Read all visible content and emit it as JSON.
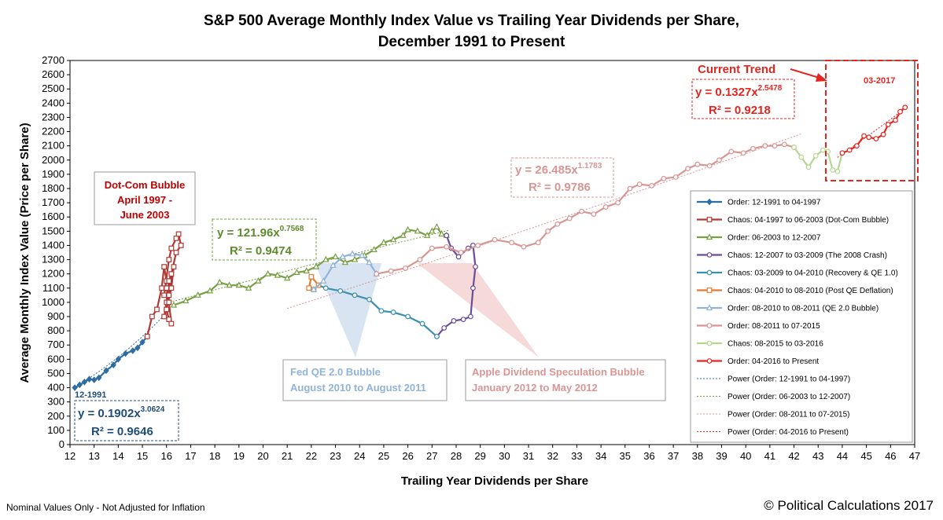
{
  "title_line1": "S&P 500 Average Monthly Index Value vs Trailing Year Dividends per Share,",
  "title_line2": "December 1991 to Present",
  "footer_left": "Nominal Values Only - Not Adjusted for Inflation",
  "footer_right": "© Political Calculations 2017",
  "chart_data": {
    "type": "scatter",
    "xlabel": "Trailing Year Dividends per Share",
    "ylabel": "Average Monthly Index Value (Price per Share)",
    "xlim": [
      12,
      47
    ],
    "ylim": [
      0,
      2700
    ],
    "x_ticks": [
      12,
      13,
      14,
      15,
      16,
      17,
      18,
      19,
      20,
      21,
      22,
      23,
      24,
      25,
      26,
      27,
      28,
      29,
      30,
      31,
      32,
      33,
      34,
      35,
      36,
      37,
      38,
      39,
      40,
      41,
      42,
      43,
      44,
      45,
      46,
      47
    ],
    "y_ticks": [
      0,
      100,
      200,
      300,
      400,
      500,
      600,
      700,
      800,
      900,
      1000,
      1100,
      1200,
      1300,
      1400,
      1500,
      1600,
      1700,
      1800,
      1900,
      2000,
      2100,
      2200,
      2300,
      2400,
      2500,
      2600,
      2700
    ],
    "series": [
      {
        "name": "Order: 12-1991 to 04-1997",
        "color": "#2e6da4",
        "marker": "diamond",
        "points": [
          [
            12.2,
            400
          ],
          [
            12.4,
            420
          ],
          [
            12.6,
            440
          ],
          [
            12.8,
            460
          ],
          [
            13.0,
            455
          ],
          [
            13.2,
            470
          ],
          [
            13.5,
            520
          ],
          [
            13.8,
            560
          ],
          [
            14.0,
            600
          ],
          [
            14.3,
            640
          ],
          [
            14.6,
            660
          ],
          [
            14.8,
            680
          ],
          [
            15.0,
            720
          ],
          [
            15.2,
            760
          ]
        ]
      },
      {
        "name": "Chaos: 04-1997 to 06-2003 (Dot-Com Bubble)",
        "color": "#b03a35",
        "marker": "square",
        "points": [
          [
            15.2,
            760
          ],
          [
            15.4,
            900
          ],
          [
            15.6,
            950
          ],
          [
            15.8,
            1100
          ],
          [
            15.9,
            1250
          ],
          [
            16.0,
            1150
          ],
          [
            15.9,
            1050
          ],
          [
            16.1,
            1300
          ],
          [
            16.2,
            1380
          ],
          [
            16.4,
            1450
          ],
          [
            16.5,
            1480
          ],
          [
            16.6,
            1400
          ],
          [
            16.4,
            1350
          ],
          [
            16.2,
            1200
          ],
          [
            16.1,
            1050
          ],
          [
            16.0,
            950
          ],
          [
            15.9,
            900
          ],
          [
            16.0,
            1000
          ],
          [
            16.1,
            1150
          ],
          [
            16.3,
            1250
          ],
          [
            16.2,
            1100
          ],
          [
            16.0,
            950
          ],
          [
            16.1,
            880
          ],
          [
            16.2,
            850
          ],
          [
            16.1,
            1000
          ],
          [
            16.0,
            1100
          ]
        ]
      },
      {
        "name": "Order: 06-2003 to 12-2007",
        "color": "#77a043",
        "marker": "triangle",
        "points": [
          [
            16.3,
            980
          ],
          [
            16.8,
            1010
          ],
          [
            17.3,
            1050
          ],
          [
            17.8,
            1080
          ],
          [
            18.2,
            1140
          ],
          [
            18.6,
            1120
          ],
          [
            19.0,
            1120
          ],
          [
            19.4,
            1100
          ],
          [
            19.8,
            1150
          ],
          [
            20.2,
            1200
          ],
          [
            20.6,
            1190
          ],
          [
            21.0,
            1170
          ],
          [
            21.4,
            1210
          ],
          [
            21.8,
            1220
          ],
          [
            22.2,
            1250
          ],
          [
            22.6,
            1300
          ],
          [
            23.0,
            1320
          ],
          [
            23.4,
            1280
          ],
          [
            23.8,
            1300
          ],
          [
            24.2,
            1330
          ],
          [
            24.6,
            1370
          ],
          [
            25.0,
            1420
          ],
          [
            25.4,
            1440
          ],
          [
            25.8,
            1470
          ],
          [
            26.0,
            1510
          ],
          [
            26.4,
            1500
          ],
          [
            26.8,
            1470
          ],
          [
            27.0,
            1500
          ],
          [
            27.2,
            1530
          ],
          [
            27.4,
            1480
          ],
          [
            27.6,
            1470
          ]
        ]
      },
      {
        "name": "Chaos: 12-2007 to 03-2009 (The 2008 Crash)",
        "color": "#6b4c9a",
        "marker": "circle",
        "points": [
          [
            27.6,
            1470
          ],
          [
            27.8,
            1380
          ],
          [
            28.1,
            1320
          ],
          [
            28.5,
            1380
          ],
          [
            28.7,
            1400
          ],
          [
            28.8,
            1250
          ],
          [
            28.7,
            1100
          ],
          [
            28.6,
            900
          ],
          [
            28.3,
            880
          ],
          [
            27.9,
            870
          ],
          [
            27.5,
            820
          ],
          [
            27.2,
            760
          ]
        ]
      },
      {
        "name": "Chaos: 03-2009 to 04-2010 (Recovery & QE 1.0)",
        "color": "#3b8fb0",
        "marker": "circle",
        "points": [
          [
            27.2,
            760
          ],
          [
            26.6,
            850
          ],
          [
            26.0,
            900
          ],
          [
            25.4,
            930
          ],
          [
            24.9,
            940
          ],
          [
            24.4,
            1020
          ],
          [
            23.8,
            1050
          ],
          [
            23.2,
            1080
          ],
          [
            22.6,
            1100
          ],
          [
            22.3,
            1120
          ]
        ]
      },
      {
        "name": "Chaos: 04-2010 to 08-2010 (Post QE Deflation)",
        "color": "#e07b30",
        "marker": "square",
        "points": [
          [
            22.3,
            1120
          ],
          [
            22.0,
            1180
          ],
          [
            21.9,
            1100
          ],
          [
            22.1,
            1090
          ]
        ]
      },
      {
        "name": "Order: 08-2010 to 08-2011 (QE 2.0 Bubble)",
        "color": "#8fb3d9",
        "marker": "triangle",
        "points": [
          [
            22.1,
            1090
          ],
          [
            22.5,
            1150
          ],
          [
            22.9,
            1260
          ],
          [
            23.3,
            1320
          ],
          [
            23.7,
            1340
          ],
          [
            24.1,
            1330
          ],
          [
            24.4,
            1280
          ],
          [
            24.7,
            1200
          ]
        ]
      },
      {
        "name": "Order: 08-2011 to 07-2015",
        "color": "#d99594",
        "marker": "circle",
        "points": [
          [
            24.7,
            1200
          ],
          [
            25.3,
            1220
          ],
          [
            25.9,
            1240
          ],
          [
            26.5,
            1300
          ],
          [
            27.0,
            1380
          ],
          [
            27.6,
            1390
          ],
          [
            28.2,
            1350
          ],
          [
            28.9,
            1400
          ],
          [
            29.6,
            1440
          ],
          [
            30.3,
            1420
          ],
          [
            30.8,
            1390
          ],
          [
            31.4,
            1420
          ],
          [
            31.8,
            1500
          ],
          [
            32.2,
            1550
          ],
          [
            32.7,
            1590
          ],
          [
            33.2,
            1640
          ],
          [
            33.7,
            1620
          ],
          [
            34.2,
            1670
          ],
          [
            34.7,
            1700
          ],
          [
            35.2,
            1800
          ],
          [
            35.6,
            1830
          ],
          [
            36.1,
            1820
          ],
          [
            36.6,
            1870
          ],
          [
            37.1,
            1880
          ],
          [
            37.6,
            1940
          ],
          [
            38.0,
            1970
          ],
          [
            38.5,
            1960
          ],
          [
            38.9,
            2000
          ],
          [
            39.4,
            2060
          ],
          [
            39.9,
            2050
          ],
          [
            40.3,
            2080
          ],
          [
            40.8,
            2100
          ],
          [
            41.2,
            2100
          ],
          [
            41.6,
            2110
          ],
          [
            42.0,
            2090
          ]
        ]
      },
      {
        "name": "Chaos: 08-2015 to 03-2016",
        "color": "#b4d68f",
        "marker": "circle",
        "points": [
          [
            42.0,
            2090
          ],
          [
            42.3,
            2020
          ],
          [
            42.6,
            1950
          ],
          [
            42.9,
            2030
          ],
          [
            43.2,
            2070
          ],
          [
            43.4,
            2060
          ],
          [
            43.6,
            1930
          ],
          [
            43.8,
            1920
          ],
          [
            44.0,
            2050
          ]
        ]
      },
      {
        "name": "Order: 04-2016 to Present",
        "color": "#e52520",
        "marker": "circle",
        "points": [
          [
            44.0,
            2050
          ],
          [
            44.3,
            2070
          ],
          [
            44.6,
            2100
          ],
          [
            44.9,
            2170
          ],
          [
            45.1,
            2160
          ],
          [
            45.4,
            2150
          ],
          [
            45.7,
            2180
          ],
          [
            45.9,
            2250
          ],
          [
            46.2,
            2280
          ],
          [
            46.4,
            2340
          ],
          [
            46.6,
            2370
          ]
        ]
      }
    ],
    "trendlines": [
      {
        "name": "Power (Order: 12-1991 to 04-1997)",
        "color": "#2e6da4",
        "coef": 0.1902,
        "exp": 3.0624,
        "x_from": 12.2,
        "x_to": 16.0
      },
      {
        "name": "Power (Order: 06-2003 to 12-2007)",
        "color": "#77a043",
        "coef": 121.96,
        "exp": 0.7568,
        "x_from": 16.0,
        "x_to": 27.7
      },
      {
        "name": "Power (Order: 08-2011 to 07-2015)",
        "color": "#d99594",
        "coef": 26.485,
        "exp": 1.1783,
        "x_from": 21.0,
        "x_to": 42.3
      },
      {
        "name": "Power (Order: 04-2016 to Present)",
        "color": "#e52520",
        "coef": 0.1327,
        "exp": 2.5478,
        "x_from": 43.8,
        "x_to": 46.7
      }
    ],
    "annotations": {
      "dotcom_l1": "Dot-Com Bubble",
      "dotcom_l2": "April 1997 -",
      "dotcom_l3": "June 2003",
      "eq_blue_base": "y = 0.1902x",
      "eq_blue_exp": "3.0624",
      "r2_blue": "R² = 0.9646",
      "eq_green_base": "y = 121.96x",
      "eq_green_exp": "0.7568",
      "r2_green": "R² = 0.9474",
      "eq_pink_base": "y = 26.485x",
      "eq_pink_exp": "1.1783",
      "r2_pink": "R² = 0.9786",
      "eq_red_base": "y = 0.1327x",
      "eq_red_exp": "2.5478",
      "r2_red": "R² = 0.9218",
      "label_start": "12-1991",
      "label_end": "03-2017",
      "current_trend": "Current Trend",
      "fed_l1": "Fed QE 2.0 Bubble",
      "fed_l2": "August 2010 to August 2011",
      "apple_l1": "Apple Dividend Speculation Bubble",
      "apple_l2": "January 2012 to May 2012"
    }
  }
}
